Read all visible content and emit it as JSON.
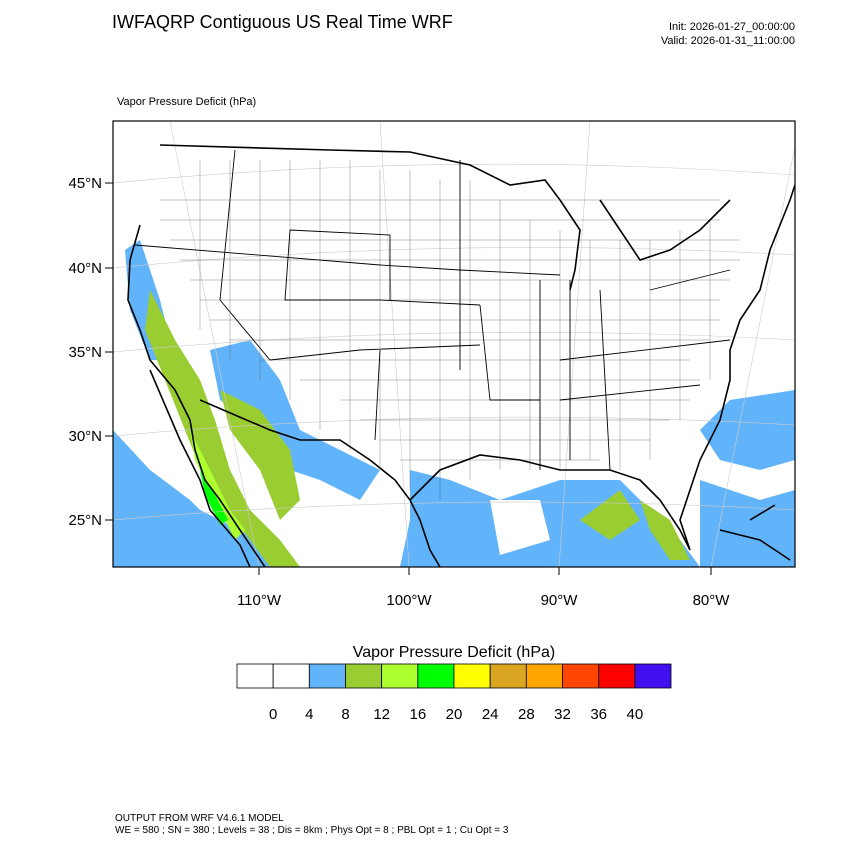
{
  "header": {
    "title": "IWFAQRP Contiguous US Real Time WRF",
    "init": "Init: 2026-01-27_00:00:00",
    "valid": "Valid: 2026-01-31_11:00:00"
  },
  "map": {
    "field_label": "Vapor Pressure Deficit   (hPa)",
    "lat_labels": [
      "45°N",
      "40°N",
      "35°N",
      "30°N",
      "25°N"
    ],
    "lon_labels": [
      "110°W",
      "100°W",
      "90°W",
      "80°W"
    ]
  },
  "colorbar": {
    "title": "Vapor Pressure Deficit  (hPa)",
    "levels": [
      0,
      4,
      8,
      12,
      16,
      20,
      24,
      28,
      32,
      36,
      40
    ],
    "colors": [
      "#ffffff",
      "#ffffff",
      "#62b4fa",
      "#9acd32",
      "#adff2f",
      "#00ff00",
      "#ffff00",
      "#daa520",
      "#ffa500",
      "#ff4500",
      "#ff0000",
      "#4010f0"
    ]
  },
  "footer": {
    "line1": "OUTPUT FROM WRF V4.6.1 MODEL",
    "line2": "WE = 580 ; SN = 380 ; Levels = 38 ; Dis = 8km ; Phys Opt = 8 ; PBL Opt = 1 ; Cu Opt = 3"
  }
}
